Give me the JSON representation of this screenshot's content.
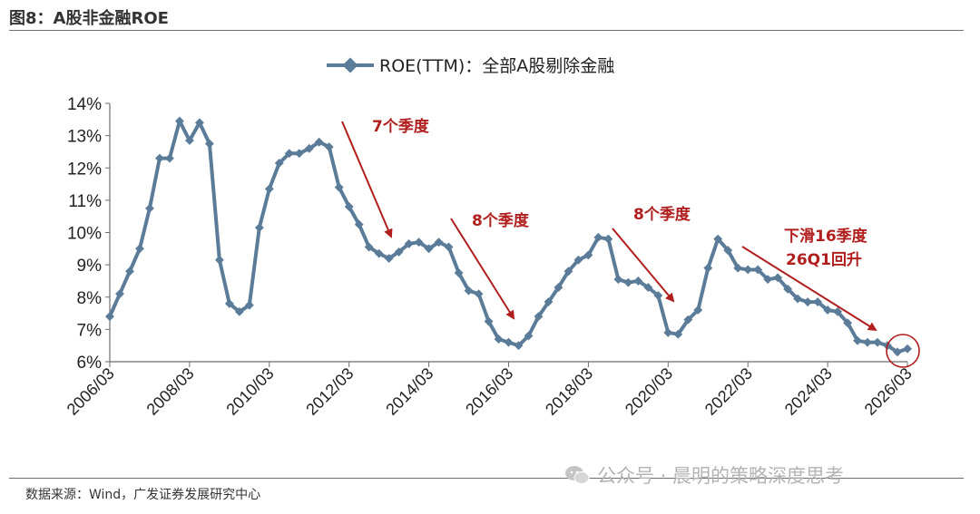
{
  "figure": {
    "title": "图8：A股非金融ROE",
    "source": "数据来源：Wind，广发证券发展研究中心",
    "watermark": "公众号 · 晨明的策略深度思考",
    "watermark_icon": "wechat-icon"
  },
  "chart_data": {
    "type": "line",
    "title": "",
    "xlabel": "",
    "ylabel": "",
    "ylim": [
      6,
      14
    ],
    "y_tick_labels": [
      "6%",
      "7%",
      "8%",
      "9%",
      "10%",
      "11%",
      "12%",
      "13%",
      "14%"
    ],
    "x_tick_labels": [
      "2006/03",
      "2008/03",
      "2010/03",
      "2012/03",
      "2014/03",
      "2016/03",
      "2018/03",
      "2020/03",
      "2022/03",
      "2024/03",
      "2026/03"
    ],
    "grid": false,
    "legend_position": "top",
    "line_color": "#5b7c99",
    "series": [
      {
        "name": "ROE(TTM)：全部A股剔除金融",
        "x": [
          "2006/03",
          "2006/06",
          "2006/09",
          "2006/12",
          "2007/03",
          "2007/06",
          "2007/09",
          "2007/12",
          "2008/03",
          "2008/06",
          "2008/09",
          "2008/12",
          "2009/03",
          "2009/06",
          "2009/09",
          "2009/12",
          "2010/03",
          "2010/06",
          "2010/09",
          "2010/12",
          "2011/03",
          "2011/06",
          "2011/09",
          "2011/12",
          "2012/03",
          "2012/06",
          "2012/09",
          "2012/12",
          "2013/03",
          "2013/06",
          "2013/09",
          "2013/12",
          "2014/03",
          "2014/06",
          "2014/09",
          "2014/12",
          "2015/03",
          "2015/06",
          "2015/09",
          "2015/12",
          "2016/03",
          "2016/06",
          "2016/09",
          "2016/12",
          "2017/03",
          "2017/06",
          "2017/09",
          "2017/12",
          "2018/03",
          "2018/06",
          "2018/09",
          "2018/12",
          "2019/03",
          "2019/06",
          "2019/09",
          "2019/12",
          "2020/03",
          "2020/06",
          "2020/09",
          "2020/12",
          "2021/03",
          "2021/06",
          "2021/09",
          "2021/12",
          "2022/03",
          "2022/06",
          "2022/09",
          "2022/12",
          "2023/03",
          "2023/06",
          "2023/09",
          "2023/12",
          "2024/03",
          "2024/06",
          "2024/09",
          "2024/12",
          "2025/03",
          "2025/06",
          "2025/09",
          "2025/12",
          "2026/03"
        ],
        "values": [
          7.4,
          8.1,
          8.8,
          9.5,
          10.75,
          12.3,
          12.3,
          13.45,
          12.85,
          13.4,
          12.75,
          9.15,
          7.8,
          7.55,
          7.75,
          10.15,
          11.35,
          12.15,
          12.45,
          12.45,
          12.6,
          12.8,
          12.65,
          11.4,
          10.8,
          10.25,
          9.55,
          9.35,
          9.2,
          9.4,
          9.65,
          9.7,
          9.5,
          9.7,
          9.55,
          8.75,
          8.2,
          8.1,
          7.25,
          6.7,
          6.6,
          6.5,
          6.8,
          7.4,
          7.85,
          8.3,
          8.8,
          9.15,
          9.3,
          9.85,
          9.8,
          8.55,
          8.45,
          8.5,
          8.3,
          8.05,
          6.9,
          6.85,
          7.3,
          7.6,
          8.9,
          9.8,
          9.45,
          8.9,
          8.85,
          8.85,
          8.55,
          8.6,
          8.25,
          7.95,
          7.85,
          7.85,
          7.6,
          7.55,
          7.2,
          6.65,
          6.6,
          6.6,
          6.5,
          6.3,
          6.4
        ]
      }
    ],
    "annotations": [
      {
        "text": "7个季度",
        "color": "#b11e1e"
      },
      {
        "text": "8个季度",
        "color": "#b11e1e"
      },
      {
        "text": "8个季度",
        "color": "#b11e1e"
      },
      {
        "text": "下滑16季度",
        "color": "#b11e1e"
      },
      {
        "text": "26Q1回升",
        "color": "#b11e1e"
      }
    ]
  }
}
